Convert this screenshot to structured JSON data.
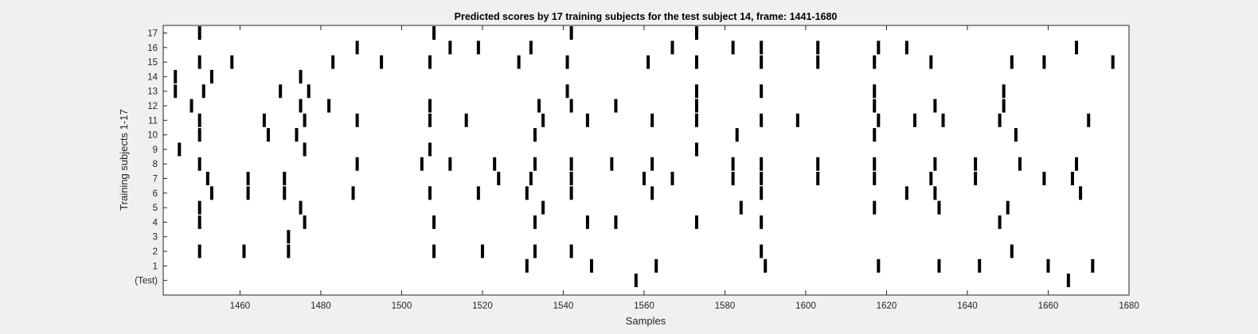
{
  "figure": {
    "background": "#f0f0f0"
  },
  "chart_data": {
    "type": "scatter",
    "mark": "vertical-tick",
    "title": "Predicted scores by 17 training subjects for the test subject 14, frame: 1441-1680",
    "xlabel": "Samples",
    "ylabel": "Training subjects 1-17",
    "xlim": [
      1441,
      1680
    ],
    "x_ticks": [
      1460,
      1480,
      1500,
      1520,
      1540,
      1560,
      1580,
      1600,
      1620,
      1640,
      1660,
      1680
    ],
    "y_tick_labels": [
      "(Test)",
      "1",
      "2",
      "3",
      "4",
      "5",
      "6",
      "7",
      "8",
      "9",
      "10",
      "11",
      "12",
      "13",
      "14",
      "15",
      "16",
      "17"
    ],
    "grid": false,
    "legend": "none",
    "mark_color": "#000000",
    "axes_color": "#ffffff",
    "rows": [
      {
        "label": "(Test)",
        "x": [
          1558,
          1665
        ]
      },
      {
        "label": "1",
        "x": [
          1531,
          1547,
          1563,
          1590,
          1618,
          1633,
          1643,
          1660,
          1671
        ]
      },
      {
        "label": "2",
        "x": [
          1450,
          1461,
          1472,
          1508,
          1520,
          1533,
          1542,
          1589,
          1651
        ]
      },
      {
        "label": "3",
        "x": [
          1472
        ]
      },
      {
        "label": "4",
        "x": [
          1450,
          1476,
          1508,
          1533,
          1546,
          1553,
          1573,
          1589,
          1648
        ]
      },
      {
        "label": "5",
        "x": [
          1450,
          1475,
          1535,
          1584,
          1617,
          1633,
          1650
        ]
      },
      {
        "label": "6",
        "x": [
          1453,
          1462,
          1471,
          1488,
          1507,
          1519,
          1531,
          1542,
          1562,
          1589,
          1625,
          1632,
          1668
        ]
      },
      {
        "label": "7",
        "x": [
          1452,
          1462,
          1471,
          1524,
          1532,
          1542,
          1560,
          1567,
          1582,
          1589,
          1603,
          1617,
          1631,
          1642,
          1659,
          1666
        ]
      },
      {
        "label": "8",
        "x": [
          1450,
          1489,
          1505,
          1512,
          1523,
          1533,
          1542,
          1552,
          1562,
          1582,
          1589,
          1603,
          1617,
          1632,
          1642,
          1653,
          1667
        ]
      },
      {
        "label": "9",
        "x": [
          1445,
          1476,
          1507,
          1573
        ]
      },
      {
        "label": "10",
        "x": [
          1450,
          1467,
          1474,
          1533,
          1583,
          1617,
          1652
        ]
      },
      {
        "label": "11",
        "x": [
          1450,
          1466,
          1476,
          1489,
          1507,
          1516,
          1535,
          1546,
          1562,
          1573,
          1589,
          1598,
          1618,
          1627,
          1634,
          1648,
          1670
        ]
      },
      {
        "label": "12",
        "x": [
          1448,
          1475,
          1482,
          1507,
          1534,
          1542,
          1553,
          1573,
          1617,
          1632,
          1649
        ]
      },
      {
        "label": "13",
        "x": [
          1444,
          1451,
          1470,
          1477,
          1541,
          1573,
          1589,
          1617,
          1649
        ]
      },
      {
        "label": "14",
        "x": [
          1444,
          1453,
          1475
        ]
      },
      {
        "label": "15",
        "x": [
          1450,
          1458,
          1483,
          1495,
          1507,
          1529,
          1541,
          1561,
          1573,
          1589,
          1603,
          1617,
          1631,
          1651,
          1659,
          1676
        ]
      },
      {
        "label": "16",
        "x": [
          1489,
          1512,
          1519,
          1532,
          1567,
          1582,
          1589,
          1603,
          1618,
          1625,
          1667
        ]
      },
      {
        "label": "17",
        "x": [
          1450,
          1508,
          1542,
          1573
        ]
      }
    ]
  }
}
